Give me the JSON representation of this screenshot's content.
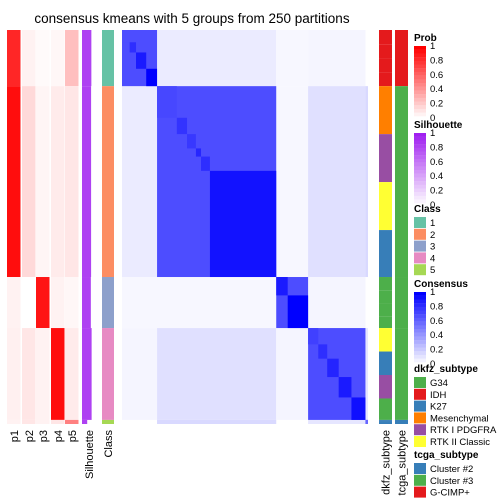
{
  "chart_data": {
    "type": "heatmap",
    "title": "consensus kmeans with 5 groups from 250 partitions",
    "column_labels": [
      "p1",
      "p2",
      "p3",
      "p4",
      "p5",
      "Silhouette",
      "Class",
      "dkfz_subtype",
      "tcga_subtype"
    ],
    "groups": [
      {
        "class": 1,
        "start": 0,
        "end": 55,
        "members": [
          {
            "start": 0,
            "end": 12,
            "cons": 0.7
          },
          {
            "start": 12,
            "end": 22,
            "cons": 0.82
          },
          {
            "start": 22,
            "end": 38,
            "cons": 0.9
          },
          {
            "start": 38,
            "end": 55,
            "cons": 1.0
          }
        ],
        "p": [
          0.85,
          0.05,
          0.02,
          0.03,
          0.25
        ],
        "sil": 0.72,
        "dkfz": [
          "IDH"
        ],
        "tcga": "G-CIMP+"
      },
      {
        "class": 2,
        "start": 55,
        "end": 242,
        "members": [
          {
            "start": 55,
            "end": 86,
            "cons": 0.72
          },
          {
            "start": 86,
            "end": 102,
            "cons": 0.8
          },
          {
            "start": 102,
            "end": 116,
            "cons": 0.78
          },
          {
            "start": 116,
            "end": 124,
            "cons": 0.85
          },
          {
            "start": 124,
            "end": 138,
            "cons": 0.82
          },
          {
            "start": 138,
            "end": 242,
            "cons": 0.93
          }
        ],
        "p": [
          0.95,
          0.15,
          0.04,
          0.08,
          0.1
        ],
        "sil": 0.7,
        "dkfz": [
          "Mesenchymal",
          "RTK I PDGFRA",
          "RTK II Classic",
          "K27",
          "G34"
        ],
        "tcga": "Cluster #3"
      },
      {
        "class": 3,
        "start": 242,
        "end": 292,
        "members": [
          {
            "start": 242,
            "end": 260,
            "cons": 0.9
          },
          {
            "start": 260,
            "end": 292,
            "cons": 1.0
          }
        ],
        "p": [
          0.05,
          0.0,
          0.92,
          0.05,
          0.03
        ],
        "sil": 0.68,
        "dkfz": [
          "G34"
        ],
        "tcga": "Cluster #3"
      },
      {
        "class": 4,
        "start": 292,
        "end": 382,
        "members": [
          {
            "start": 292,
            "end": 308,
            "cons": 0.75
          },
          {
            "start": 308,
            "end": 322,
            "cons": 0.82
          },
          {
            "start": 322,
            "end": 340,
            "cons": 0.86
          },
          {
            "start": 340,
            "end": 360,
            "cons": 0.9
          },
          {
            "start": 360,
            "end": 382,
            "cons": 0.94
          }
        ],
        "p": [
          0.06,
          0.1,
          0.05,
          0.95,
          0.08
        ],
        "sil": 0.74,
        "dkfz": [
          "RTK II Classic",
          "K27",
          "RTK I PDGFRA",
          "G34"
        ],
        "tcga": "Cluster #3"
      },
      {
        "class": 5,
        "start": 382,
        "end": 386,
        "members": [
          {
            "start": 382,
            "end": 386,
            "cons": 0.6
          }
        ],
        "p": [
          0.05,
          0.1,
          0.05,
          0.1,
          0.5
        ],
        "sil": 0.4,
        "dkfz": [
          "K27"
        ],
        "tcga": "Cluster #2"
      }
    ],
    "between_consensus": [
      [
        1,
        2,
        0.08
      ],
      [
        1,
        3,
        0.03
      ],
      [
        1,
        4,
        0.04
      ],
      [
        2,
        3,
        0.03
      ],
      [
        2,
        4,
        0.12
      ],
      [
        3,
        4,
        0.04
      ],
      [
        2,
        5,
        0.15
      ],
      [
        4,
        5,
        0.1
      ]
    ],
    "legend": {
      "prob": {
        "title": "Prob",
        "ticks": [
          "1",
          "0.8",
          "0.6",
          "0.4",
          "0.2",
          "0"
        ]
      },
      "silhouette": {
        "title": "Silhouette",
        "ticks": [
          "1",
          "0.8",
          "0.6",
          "0.4",
          "0.2",
          "0"
        ]
      },
      "class": {
        "title": "Class",
        "items": [
          "1",
          "2",
          "3",
          "4",
          "5"
        ]
      },
      "consensus": {
        "title": "Consensus",
        "ticks": [
          "1",
          "0.8",
          "0.6",
          "0.4",
          "0.2",
          "0"
        ]
      },
      "dkfz_subtype": {
        "title": "dkfz_subtype",
        "items": [
          "G34",
          "IDH",
          "K27",
          "Mesenchymal",
          "RTK I PDGFRA",
          "RTK II Classic"
        ]
      },
      "tcga_subtype": {
        "title": "tcga_subtype",
        "items": [
          "Cluster #2",
          "Cluster #3",
          "G-CIMP+"
        ]
      }
    },
    "colors": {
      "class": [
        "#66C2A5",
        "#FC8D62",
        "#8DA0CB",
        "#E78AC3",
        "#A6D854"
      ],
      "dkfz_subtype": [
        "#4DAF4A",
        "#E41A1C",
        "#377EB8",
        "#FF7F00",
        "#984EA3",
        "#FFFF33"
      ],
      "tcga_subtype": [
        "#377EB8",
        "#4DAF4A",
        "#E41A1C"
      ],
      "prob_high": "#FF0000",
      "silhouette_high": "#A020F0",
      "consensus_high": "#0000FF"
    }
  }
}
